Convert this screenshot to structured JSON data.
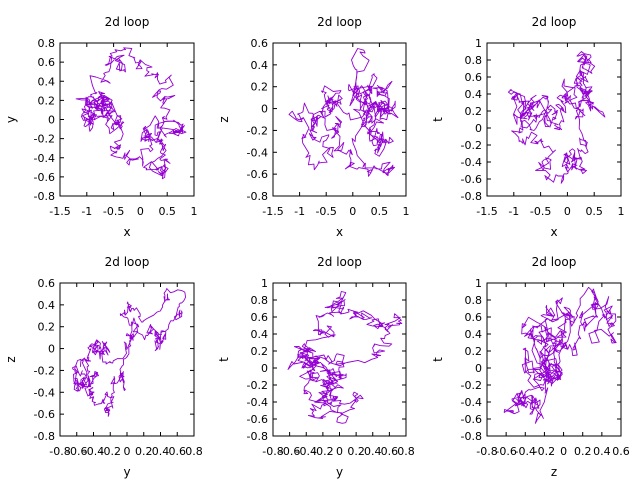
{
  "chart_data": [
    {
      "type": "line",
      "title": "2d loop",
      "xlabel": "x",
      "ylabel": "y",
      "xlim": [
        -1.5,
        1
      ],
      "ylim": [
        -0.8,
        0.8
      ],
      "xticks": [
        "-1.5",
        "-1",
        "-0.5",
        "0",
        "0.5",
        "1"
      ],
      "yticks": [
        "-0.8",
        "-0.6",
        "-0.4",
        "-0.2",
        "0",
        "0.2",
        "0.4",
        "0.6",
        "0.8"
      ],
      "grid": false,
      "color": "#9400D3",
      "series": [
        {
          "x_range": [
            -1.2,
            0.85
          ],
          "y_range": [
            -0.62,
            0.75
          ],
          "description": "closed random-walk loop"
        }
      ]
    },
    {
      "type": "line",
      "title": "2d loop",
      "xlabel": "x",
      "ylabel": "z",
      "xlim": [
        -1.5,
        1
      ],
      "ylim": [
        -0.8,
        0.6
      ],
      "xticks": [
        "-1.5",
        "-1",
        "-0.5",
        "0",
        "0.5",
        "1"
      ],
      "yticks": [
        "-0.8",
        "-0.6",
        "-0.4",
        "-0.2",
        "0",
        "0.2",
        "0.4",
        "0.6"
      ],
      "grid": false,
      "color": "#9400D3",
      "series": [
        {
          "x_range": [
            -1.2,
            0.85
          ],
          "y_range": [
            -0.62,
            0.55
          ],
          "description": "closed random-walk loop"
        }
      ]
    },
    {
      "type": "line",
      "title": "2d loop",
      "xlabel": "x",
      "ylabel": "t",
      "xlim": [
        -1.5,
        1
      ],
      "ylim": [
        -0.8,
        1
      ],
      "xticks": [
        "-1.5",
        "-1",
        "-0.5",
        "0",
        "0.5",
        "1"
      ],
      "yticks": [
        "-0.8",
        "-0.6",
        "-0.4",
        "-0.2",
        "0",
        "0.2",
        "0.4",
        "0.6",
        "0.8",
        "1"
      ],
      "grid": false,
      "color": "#9400D3",
      "series": [
        {
          "x_range": [
            -1.1,
            0.7
          ],
          "y_range": [
            -0.65,
            0.9
          ],
          "description": "closed random-walk loop"
        }
      ]
    },
    {
      "type": "line",
      "title": "2d loop",
      "xlabel": "y",
      "ylabel": "z",
      "xlim": [
        -0.8,
        0.8
      ],
      "ylim": [
        -0.8,
        0.6
      ],
      "xticks": [
        "-0.8",
        "-0.6",
        "-0.4",
        "-0.2",
        "0",
        "0.2",
        "0.4",
        "0.6",
        "0.8"
      ],
      "yticks": [
        "-0.8",
        "-0.6",
        "-0.4",
        "-0.2",
        "0",
        "0.2",
        "0.4",
        "0.6"
      ],
      "grid": false,
      "color": "#9400D3",
      "series": [
        {
          "x_range": [
            -0.65,
            0.7
          ],
          "y_range": [
            -0.62,
            0.55
          ],
          "description": "closed random-walk loop"
        }
      ]
    },
    {
      "type": "line",
      "title": "2d loop",
      "xlabel": "y",
      "ylabel": "t",
      "xlim": [
        -0.8,
        0.8
      ],
      "ylim": [
        -0.8,
        1
      ],
      "xticks": [
        "-0.8",
        "-0.6",
        "-0.4",
        "-0.2",
        "0",
        "0.2",
        "0.4",
        "0.6",
        "0.8"
      ],
      "yticks": [
        "-0.8",
        "-0.6",
        "-0.4",
        "-0.2",
        "0",
        "0.2",
        "0.4",
        "0.6",
        "0.8",
        "1"
      ],
      "grid": false,
      "color": "#9400D3",
      "series": [
        {
          "x_range": [
            -0.62,
            0.75
          ],
          "y_range": [
            -0.65,
            0.9
          ],
          "description": "closed random-walk loop"
        }
      ]
    },
    {
      "type": "line",
      "title": "2d loop",
      "xlabel": "z",
      "ylabel": "t",
      "xlim": [
        -0.8,
        0.6
      ],
      "ylim": [
        -0.8,
        1
      ],
      "xticks": [
        "-0.8",
        "-0.6",
        "-0.4",
        "-0.2",
        "0",
        "0.2",
        "0.4",
        "0.6"
      ],
      "yticks": [
        "-0.8",
        "-0.6",
        "-0.4",
        "-0.2",
        "0",
        "0.2",
        "0.4",
        "0.6",
        "0.8",
        "1"
      ],
      "grid": false,
      "color": "#9400D3",
      "series": [
        {
          "x_range": [
            -0.62,
            0.55
          ],
          "y_range": [
            -0.65,
            0.95
          ],
          "description": "closed random-walk loop"
        }
      ]
    }
  ]
}
